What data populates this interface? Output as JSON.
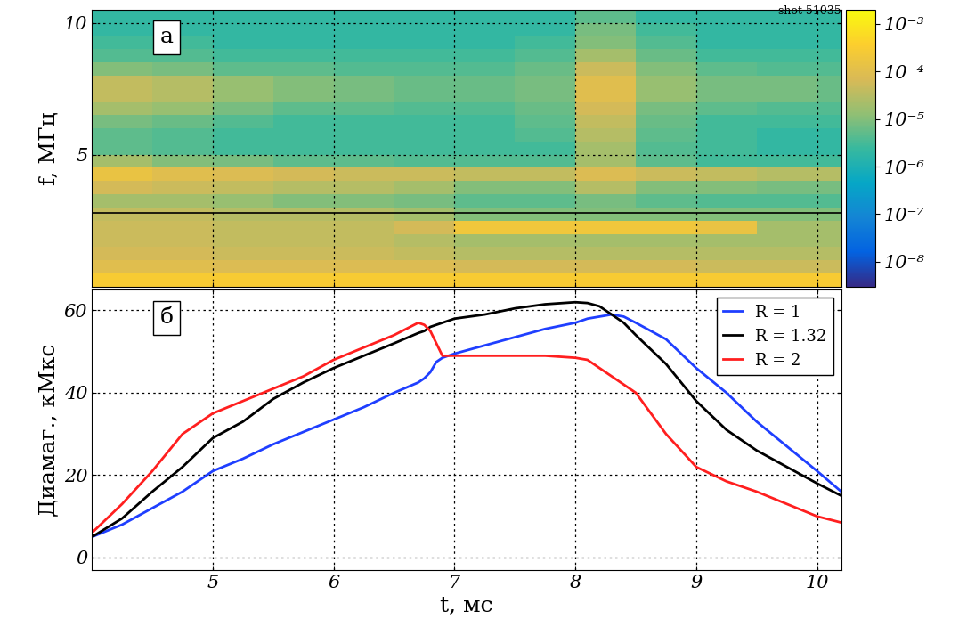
{
  "chart_data": [
    {
      "type": "heatmap",
      "panel_label": "а",
      "annotation": "shot 51035",
      "ylabel": "f, МГц",
      "x_edges": [
        4.0,
        4.5,
        5.0,
        5.5,
        6.0,
        6.5,
        7.0,
        7.5,
        8.0,
        8.5,
        9.0,
        9.5,
        10.0,
        10.2
      ],
      "y_edges": [
        0,
        0.5,
        1,
        1.5,
        2,
        2.5,
        3,
        3.5,
        4,
        4.5,
        5,
        5.5,
        6,
        6.5,
        7,
        7.5,
        8,
        8.5,
        9,
        9.5,
        10,
        10.5
      ],
      "cells": [
        [
          0.0003,
          0.0003,
          0.0003,
          0.0003,
          0.0003,
          0.0003,
          0.0003,
          0.0003,
          0.0003,
          0.0003,
          0.0003,
          0.0003,
          0.0003
        ],
        [
          0.0001,
          0.0001,
          8e-05,
          8e-05,
          8e-05,
          8e-05,
          6e-05,
          6e-05,
          6e-05,
          6e-05,
          5e-05,
          5e-05,
          5e-05
        ],
        [
          6e-05,
          6e-05,
          5e-05,
          5e-05,
          5e-05,
          4e-05,
          3e-05,
          3e-05,
          3e-05,
          3e-05,
          3e-05,
          3e-05,
          3e-05
        ],
        [
          5e-05,
          5e-05,
          4e-05,
          4e-05,
          4e-05,
          3e-05,
          2e-05,
          2e-05,
          2e-05,
          2e-05,
          2e-05,
          2e-05,
          2e-05
        ],
        [
          5e-05,
          5e-05,
          4e-05,
          4e-05,
          4e-05,
          6e-05,
          0.0002,
          0.0002,
          0.0002,
          0.0002,
          0.00015,
          2e-05,
          2e-05
        ],
        [
          4e-05,
          4e-05,
          3e-05,
          3e-05,
          3e-05,
          2e-05,
          1e-05,
          1e-05,
          1e-05,
          1e-05,
          1e-05,
          1e-05,
          1e-05
        ],
        [
          2e-05,
          2e-05,
          1.5e-05,
          1e-05,
          1e-05,
          8e-06,
          5e-06,
          5e-06,
          8e-06,
          5e-06,
          4e-06,
          4e-06,
          4e-06
        ],
        [
          6e-05,
          5e-05,
          4e-05,
          3e-05,
          3e-05,
          2e-05,
          1e-05,
          1e-05,
          3e-05,
          1e-05,
          1e-05,
          8e-06,
          8e-06
        ],
        [
          0.00015,
          0.0001,
          8e-05,
          6e-05,
          5e-05,
          5e-05,
          4e-05,
          4e-05,
          8e-05,
          5e-05,
          4e-05,
          3e-05,
          3e-05
        ],
        [
          2e-05,
          1e-05,
          8e-06,
          5e-06,
          5e-06,
          4e-06,
          4e-06,
          4e-06,
          2e-05,
          5e-06,
          3e-06,
          3e-06,
          3e-06
        ],
        [
          5e-06,
          4e-06,
          3e-06,
          3e-06,
          3e-06,
          3e-06,
          3e-06,
          3e-06,
          2e-05,
          4e-06,
          3e-06,
          2e-06,
          2e-06
        ],
        [
          5e-06,
          4e-06,
          3e-06,
          3e-06,
          3e-06,
          3e-06,
          3e-06,
          4e-06,
          3e-05,
          5e-06,
          3e-06,
          2e-06,
          2e-06
        ],
        [
          8e-06,
          6e-06,
          4e-06,
          3e-06,
          3e-06,
          3e-06,
          3e-06,
          5e-06,
          4e-05,
          6e-06,
          3e-06,
          3e-06,
          3e-06
        ],
        [
          2e-05,
          1.5e-05,
          8e-06,
          5e-06,
          5e-06,
          4e-06,
          4e-06,
          6e-06,
          6e-05,
          8e-06,
          5e-06,
          4e-06,
          4e-06
        ],
        [
          4e-05,
          3e-05,
          1.5e-05,
          1e-05,
          8e-06,
          6e-06,
          6e-06,
          8e-06,
          0.0001,
          1.5e-05,
          8e-06,
          8e-06,
          6e-06
        ],
        [
          4e-05,
          3e-05,
          1.5e-05,
          1e-05,
          8e-06,
          6e-06,
          6e-06,
          8e-06,
          0.0001,
          1.5e-05,
          8e-06,
          8e-06,
          6e-06
        ],
        [
          1e-05,
          8e-06,
          5e-06,
          5e-06,
          4e-06,
          4e-06,
          4e-06,
          6e-06,
          5e-05,
          1e-05,
          5e-06,
          4e-06,
          4e-06
        ],
        [
          4e-06,
          4e-06,
          3e-06,
          3e-06,
          3e-06,
          3e-06,
          3e-06,
          4e-06,
          2e-05,
          6e-06,
          3e-06,
          3e-06,
          3e-06
        ],
        [
          3e-06,
          3e-06,
          2e-06,
          2e-06,
          2e-06,
          2e-06,
          2e-06,
          3e-06,
          1e-05,
          4e-06,
          2e-06,
          2e-06,
          2e-06
        ],
        [
          2e-06,
          2e-06,
          2e-06,
          2e-06,
          2e-06,
          2e-06,
          2e-06,
          2e-06,
          8e-06,
          3e-06,
          2e-06,
          2e-06,
          2e-06
        ],
        [
          2e-06,
          2e-06,
          2e-06,
          2e-06,
          2e-06,
          2e-06,
          2e-06,
          2e-06,
          5e-06,
          2e-06,
          2e-06,
          2e-06,
          2e-06
        ]
      ],
      "line_f": 2.8,
      "xlim": [
        4.0,
        10.2
      ],
      "ylim": [
        0,
        10.5
      ],
      "xticks": [
        5,
        6,
        7,
        8,
        9,
        10
      ],
      "yticks": [
        5,
        10
      ],
      "tick_labels": "y",
      "grid": true,
      "log": "colorbar",
      "colorbar_lim": [
        3e-09,
        0.002
      ],
      "colorbar_ticks": [
        {
          "value": 1e-08,
          "label": "10⁻⁸"
        },
        {
          "value": 1e-07,
          "label": "10⁻⁷"
        },
        {
          "value": 1e-06,
          "label": "10⁻⁶"
        },
        {
          "value": 1e-05,
          "label": "10⁻⁵"
        },
        {
          "value": 0.0001,
          "label": "10⁻⁴"
        },
        {
          "value": 0.001,
          "label": "10⁻³"
        }
      ]
    },
    {
      "type": "line",
      "panel_label": "б",
      "xlabel": "t, мс",
      "ylabel": "Диамаг., кМкс",
      "x": [
        4.0,
        4.25,
        4.5,
        4.75,
        5.0,
        5.25,
        5.5,
        5.75,
        6.0,
        6.25,
        6.5,
        6.7,
        6.75,
        6.8,
        6.85,
        6.9,
        6.95,
        7.0,
        7.25,
        7.5,
        7.75,
        8.0,
        8.1,
        8.2,
        8.3,
        8.4,
        8.5,
        8.75,
        9.0,
        9.25,
        9.5,
        9.75,
        10.0,
        10.2
      ],
      "series": [
        {
          "name": "R = 1",
          "color": "#1f3fff",
          "values": [
            5,
            8,
            12,
            16,
            21,
            24,
            27.5,
            30.5,
            33.5,
            36.5,
            40,
            42.5,
            43.5,
            45,
            47.5,
            48.5,
            49,
            49.5,
            51.5,
            53.5,
            55.5,
            57,
            58,
            58.5,
            59,
            58.5,
            57,
            53,
            46,
            40,
            33,
            27,
            21,
            16
          ]
        },
        {
          "name": "R = 1.32",
          "color": "#000000",
          "values": [
            5,
            9.5,
            16,
            22,
            29,
            33,
            38.5,
            42.5,
            46,
            49,
            52,
            54.5,
            55,
            56,
            56.5,
            57,
            57.5,
            58,
            59,
            60.5,
            61.5,
            62,
            61.8,
            61,
            59,
            57,
            54,
            47,
            38,
            31,
            26,
            22,
            18,
            15
          ]
        },
        {
          "name": "R = 2",
          "color": "#ff1f1f",
          "values": [
            6,
            13,
            21,
            30,
            35,
            38,
            41,
            44,
            48,
            51,
            54,
            57,
            56.5,
            55,
            52,
            49,
            49,
            49,
            49,
            49,
            49,
            48.5,
            48,
            46,
            44,
            42,
            40,
            30,
            22,
            18.5,
            16,
            13,
            10,
            8.5
          ]
        }
      ],
      "xlim": [
        4.0,
        10.2
      ],
      "ylim": [
        -3,
        65
      ],
      "xticks": [
        5,
        6,
        7,
        8,
        9,
        10
      ],
      "yticks": [
        0,
        20,
        40,
        60
      ],
      "grid": true,
      "legend": "upper right"
    }
  ]
}
